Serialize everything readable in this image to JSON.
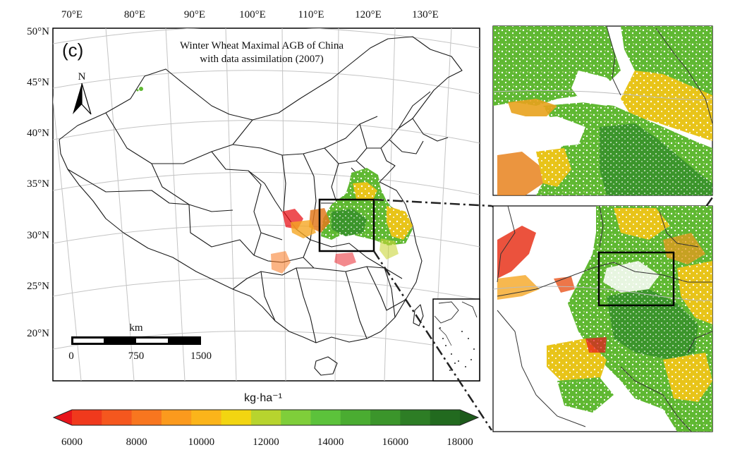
{
  "panel_label": "(c)",
  "title_line1": "Winter Wheat Maximal AGB of China",
  "title_line2": "with data assimilation (2007)",
  "north_label": "N",
  "lon_labels": [
    "70°E",
    "80°E",
    "90°E",
    "100°E",
    "110°E",
    "120°E",
    "130°E"
  ],
  "lat_labels": [
    "50°N",
    "45°N",
    "40°N",
    "35°N",
    "30°N",
    "25°N",
    "20°N"
  ],
  "scale_bar": {
    "unit": "km",
    "ticks": [
      "0",
      "750",
      "1500"
    ]
  },
  "colorbar": {
    "unit_label": "kg·ha⁻¹",
    "tick_labels": [
      "6000",
      "8000",
      "10000",
      "12000",
      "14000",
      "16000",
      "18000"
    ],
    "colors": [
      "#e8141b",
      "#f0391c",
      "#f5571e",
      "#f8761f",
      "#fb9a1d",
      "#fbb41a",
      "#f2d511",
      "#b7d42e",
      "#7fce3a",
      "#5cc23b",
      "#4aac31",
      "#3b952b",
      "#2d7d25",
      "#226a1f",
      "#1d5a1b"
    ]
  },
  "accent_colors": {
    "frame": "#000000",
    "boundary": "#222222",
    "graticule": "#bdbdbd"
  }
}
